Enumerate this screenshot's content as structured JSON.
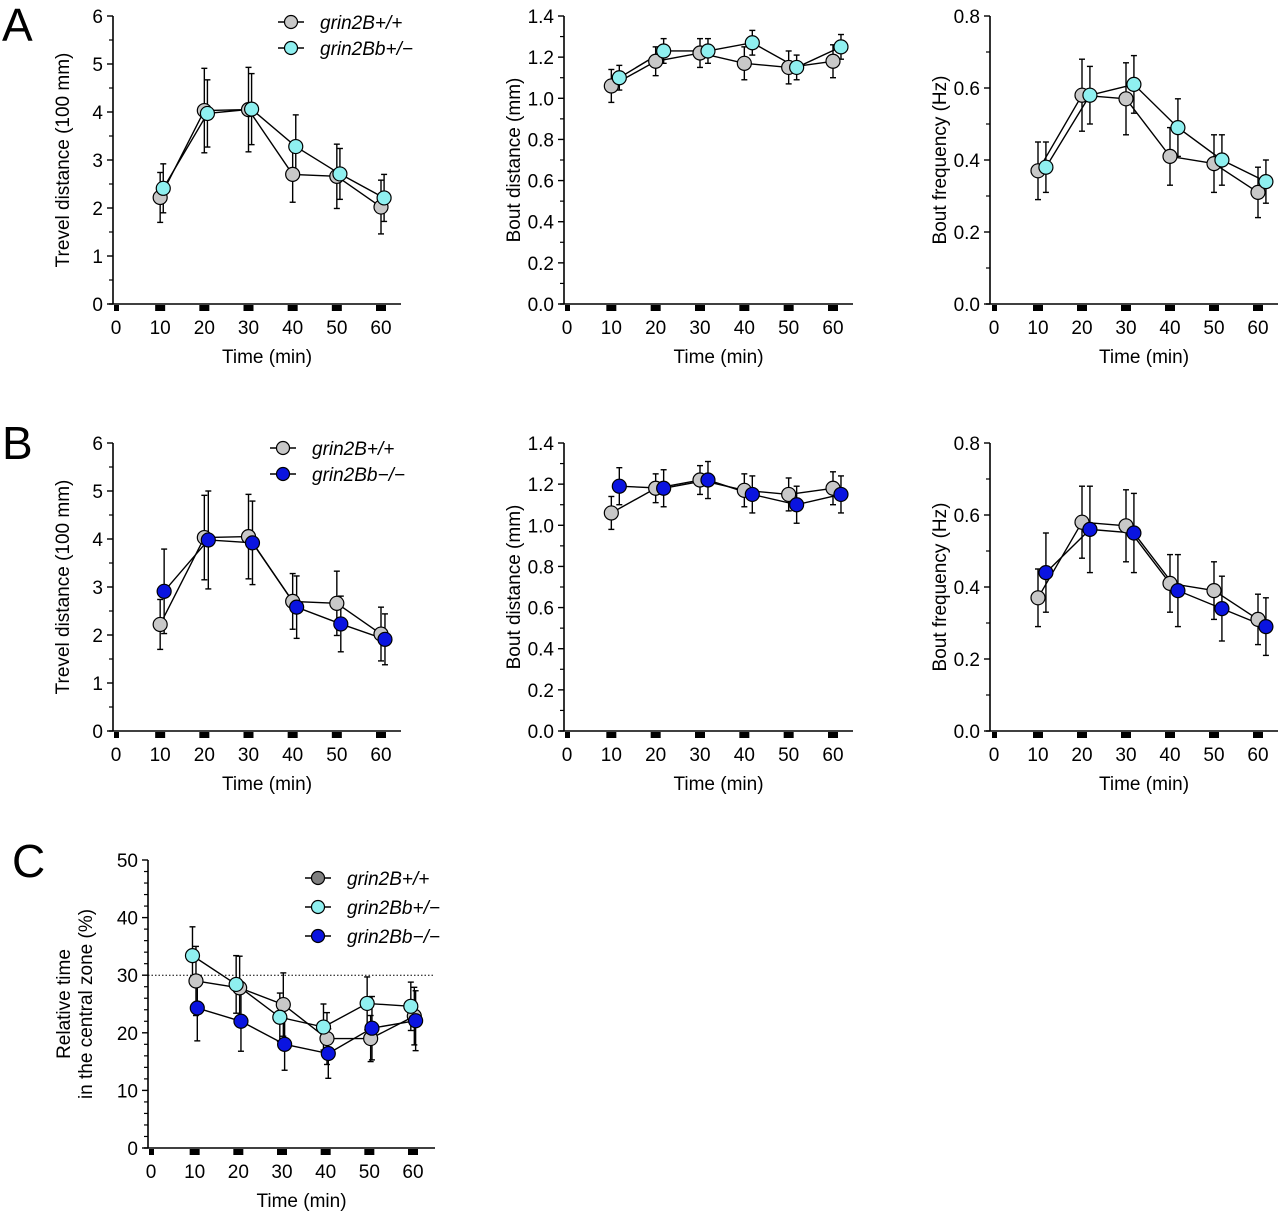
{
  "colors": {
    "wt": "#c8c8c8",
    "wt_dark": "#808080",
    "het": "#8ff0f0",
    "ko": "#0a14e0",
    "line": "#000000"
  },
  "panels": [
    {
      "letter": "A"
    },
    {
      "letter": "B"
    },
    {
      "letter": "C"
    }
  ],
  "chart_data": [
    {
      "id": "A1",
      "panel": "A",
      "type": "line",
      "title": "",
      "xlabel": "Time (min)",
      "ylabel": "Trevel distance (100 mm)",
      "xlim": [
        0,
        60
      ],
      "ylim": [
        0,
        6
      ],
      "xticks": [
        "0",
        "10",
        "20",
        "30",
        "40",
        "50",
        "60"
      ],
      "yticks": [
        "0",
        "1",
        "2",
        "3",
        "4",
        "5",
        "6"
      ],
      "legend": {
        "placement": "top-right",
        "entries": [
          "grin2B+/+",
          "grin2Bb+/−"
        ]
      },
      "x": [
        10,
        20,
        30,
        40,
        50,
        60
      ],
      "series": [
        {
          "name": "grin2B+/+",
          "color_key": "wt",
          "offset": 0,
          "values": [
            2.22,
            4.03,
            4.05,
            2.7,
            2.66,
            2.02
          ],
          "err": [
            0.52,
            0.88,
            0.88,
            0.58,
            0.67,
            0.56
          ]
        },
        {
          "name": "grin2Bb+/−",
          "color_key": "het",
          "offset": 0.7,
          "values": [
            2.41,
            3.97,
            4.06,
            3.28,
            2.71,
            2.21
          ],
          "err": [
            0.51,
            0.7,
            0.74,
            0.66,
            0.53,
            0.49
          ]
        }
      ]
    },
    {
      "id": "A2",
      "panel": "A",
      "type": "line",
      "xlabel": "Time (min)",
      "ylabel": "Bout distance (mm)",
      "xlim": [
        0,
        60
      ],
      "ylim": [
        0,
        1.4
      ],
      "xticks": [
        "0",
        "10",
        "20",
        "30",
        "40",
        "50",
        "60"
      ],
      "yticks": [
        "0.0",
        "0.2",
        "0.4",
        "0.6",
        "0.8",
        "1.0",
        "1.2",
        "1.4"
      ],
      "x": [
        10,
        20,
        30,
        40,
        50,
        60
      ],
      "series": [
        {
          "name": "grin2B+/+",
          "color_key": "wt",
          "offset": 0,
          "values": [
            1.06,
            1.18,
            1.22,
            1.17,
            1.15,
            1.18
          ],
          "err": [
            0.08,
            0.07,
            0.07,
            0.08,
            0.08,
            0.08
          ]
        },
        {
          "name": "grin2Bb+/−",
          "color_key": "het",
          "offset": 1.8,
          "values": [
            1.1,
            1.23,
            1.23,
            1.27,
            1.15,
            1.25
          ],
          "err": [
            0.06,
            0.06,
            0.06,
            0.06,
            0.06,
            0.06
          ]
        }
      ]
    },
    {
      "id": "A3",
      "panel": "A",
      "type": "line",
      "xlabel": "Time (min)",
      "ylabel": "Bout frequency (Hz)",
      "xlim": [
        0,
        60
      ],
      "ylim": [
        0,
        0.8
      ],
      "xticks": [
        "0",
        "10",
        "20",
        "30",
        "40",
        "50",
        "60"
      ],
      "yticks": [
        "0.0",
        "0.2",
        "0.4",
        "0.6",
        "0.8"
      ],
      "x": [
        10,
        20,
        30,
        40,
        50,
        60
      ],
      "series": [
        {
          "name": "grin2B+/+",
          "color_key": "wt",
          "offset": 0,
          "values": [
            0.37,
            0.58,
            0.57,
            0.41,
            0.39,
            0.31
          ],
          "err": [
            0.08,
            0.1,
            0.1,
            0.08,
            0.08,
            0.07
          ]
        },
        {
          "name": "grin2Bb+/−",
          "color_key": "het",
          "offset": 1.8,
          "values": [
            0.38,
            0.58,
            0.61,
            0.49,
            0.4,
            0.34
          ],
          "err": [
            0.07,
            0.08,
            0.08,
            0.08,
            0.07,
            0.06
          ]
        }
      ]
    },
    {
      "id": "B1",
      "panel": "B",
      "type": "line",
      "xlabel": "Time (min)",
      "ylabel": "Trevel distance (100 mm)",
      "xlim": [
        0,
        60
      ],
      "ylim": [
        0,
        6
      ],
      "xticks": [
        "0",
        "10",
        "20",
        "30",
        "40",
        "50",
        "60"
      ],
      "yticks": [
        "0",
        "1",
        "2",
        "3",
        "4",
        "5",
        "6"
      ],
      "legend": {
        "placement": "top-right",
        "entries": [
          "grin2B+/+",
          "grin2Bb−/−"
        ]
      },
      "x": [
        10,
        20,
        30,
        40,
        50,
        60
      ],
      "series": [
        {
          "name": "grin2B+/+",
          "color_key": "wt",
          "offset": 0,
          "values": [
            2.22,
            4.03,
            4.05,
            2.7,
            2.66,
            2.02
          ],
          "err": [
            0.52,
            0.88,
            0.88,
            0.58,
            0.67,
            0.56
          ]
        },
        {
          "name": "grin2Bb−/−",
          "color_key": "ko",
          "offset": 0.9,
          "values": [
            2.91,
            3.98,
            3.92,
            2.58,
            2.23,
            1.91
          ],
          "err": [
            0.88,
            1.02,
            0.87,
            0.65,
            0.58,
            0.53
          ]
        }
      ]
    },
    {
      "id": "B2",
      "panel": "B",
      "type": "line",
      "xlabel": "Time (min)",
      "ylabel": "Bout distance (mm)",
      "xlim": [
        0,
        60
      ],
      "ylim": [
        0,
        1.4
      ],
      "xticks": [
        "0",
        "10",
        "20",
        "30",
        "40",
        "50",
        "60"
      ],
      "yticks": [
        "0.0",
        "0.2",
        "0.4",
        "0.6",
        "0.8",
        "1.0",
        "1.2",
        "1.4"
      ],
      "x": [
        10,
        20,
        30,
        40,
        50,
        60
      ],
      "series": [
        {
          "name": "grin2B+/+",
          "color_key": "wt",
          "offset": 0,
          "values": [
            1.06,
            1.18,
            1.22,
            1.17,
            1.15,
            1.18
          ],
          "err": [
            0.08,
            0.07,
            0.07,
            0.08,
            0.08,
            0.08
          ]
        },
        {
          "name": "grin2Bb−/−",
          "color_key": "ko",
          "offset": 1.8,
          "values": [
            1.19,
            1.18,
            1.22,
            1.15,
            1.1,
            1.15
          ],
          "err": [
            0.09,
            0.09,
            0.09,
            0.09,
            0.09,
            0.09
          ]
        }
      ]
    },
    {
      "id": "B3",
      "panel": "B",
      "type": "line",
      "xlabel": "Time (min)",
      "ylabel": "Bout frequency (Hz)",
      "xlim": [
        0,
        60
      ],
      "ylim": [
        0,
        0.8
      ],
      "xticks": [
        "0",
        "10",
        "20",
        "30",
        "40",
        "50",
        "60"
      ],
      "yticks": [
        "0.0",
        "0.2",
        "0.4",
        "0.6",
        "0.8"
      ],
      "x": [
        10,
        20,
        30,
        40,
        50,
        60
      ],
      "series": [
        {
          "name": "grin2B+/+",
          "color_key": "wt",
          "offset": 0,
          "values": [
            0.37,
            0.58,
            0.57,
            0.41,
            0.39,
            0.31
          ],
          "err": [
            0.08,
            0.1,
            0.1,
            0.08,
            0.08,
            0.07
          ]
        },
        {
          "name": "grin2Bb−/−",
          "color_key": "ko",
          "offset": 1.8,
          "values": [
            0.44,
            0.56,
            0.55,
            0.39,
            0.34,
            0.29
          ],
          "err": [
            0.11,
            0.12,
            0.11,
            0.1,
            0.09,
            0.08
          ]
        }
      ]
    },
    {
      "id": "C1",
      "panel": "C",
      "type": "line",
      "xlabel": "Time (min)",
      "ylabel": "Relative time|in the central zone (%)",
      "xlim": [
        0,
        60
      ],
      "ylim": [
        0,
        50
      ],
      "xticks": [
        "0",
        "10",
        "20",
        "30",
        "40",
        "50",
        "60"
      ],
      "yticks": [
        "0",
        "10",
        "20",
        "30",
        "40",
        "50"
      ],
      "reference_line": 30,
      "legend": {
        "placement": "top-right",
        "entries": [
          "grin2B+/+",
          "grin2Bb+/−",
          "grin2Bb−/−"
        ]
      },
      "x": [
        10,
        20,
        30,
        40,
        50,
        60
      ],
      "series": [
        {
          "name": "grin2B+/+",
          "color_key": "wt",
          "legend_color_key": "wt_dark",
          "offset": 0.3,
          "values": [
            29.0,
            27.8,
            24.9,
            19.0,
            19.0,
            22.9
          ],
          "err": [
            6.0,
            5.5,
            5.5,
            4.5,
            4.0,
            5.0
          ]
        },
        {
          "name": "grin2Bb+/−",
          "color_key": "het",
          "offset": -0.5,
          "values": [
            33.4,
            28.4,
            22.7,
            21.0,
            25.1,
            24.6
          ],
          "err": [
            5.0,
            5.0,
            4.2,
            4.0,
            4.6,
            4.2
          ]
        },
        {
          "name": "grin2Bb−/−",
          "color_key": "ko",
          "offset": 0.6,
          "values": [
            24.3,
            22.0,
            18.0,
            16.4,
            20.8,
            22.1
          ],
          "err": [
            5.7,
            5.2,
            4.5,
            4.3,
            5.5,
            5.2
          ]
        }
      ]
    }
  ]
}
